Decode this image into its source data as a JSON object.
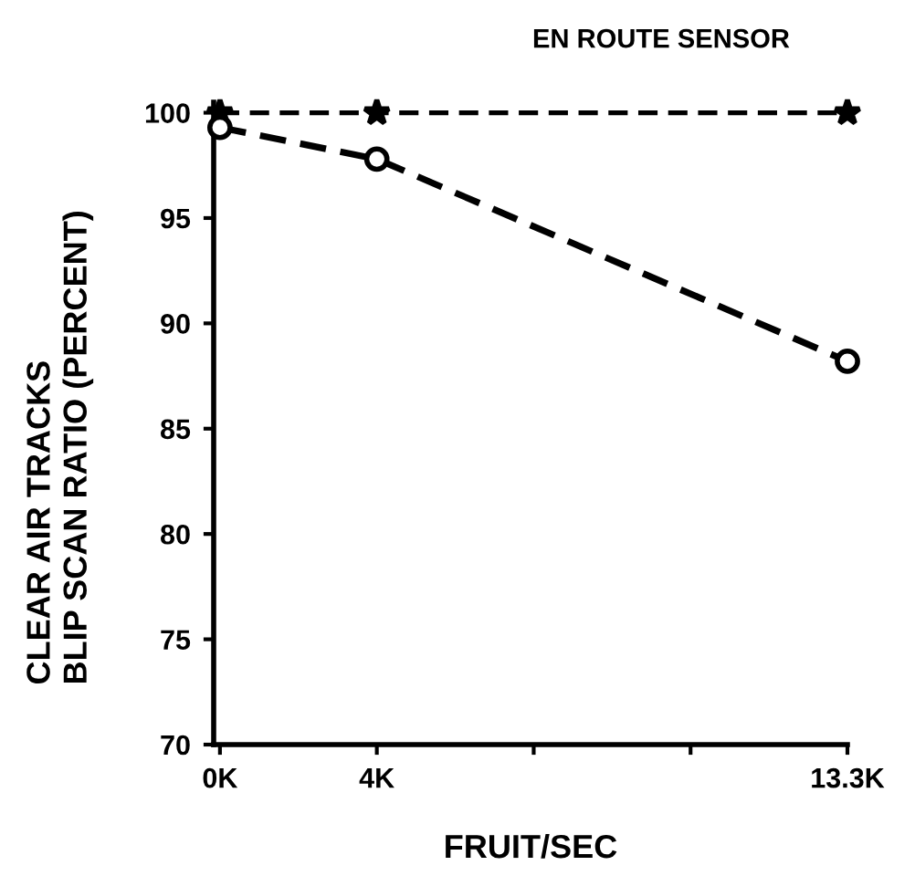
{
  "chart_data": {
    "type": "line",
    "title": "EN ROUTE SENSOR",
    "xlabel": "FRUIT/SEC",
    "ylabel": "CLEAR AIR TRACKS\nBLIP SCAN RATIO (PERCENT)",
    "categories": [
      "0K",
      "4K",
      null,
      null,
      "13.3K"
    ],
    "series": [
      {
        "color": "#000000",
        "values": [
          100,
          100,
          null,
          null,
          100
        ],
        "marker": "star"
      },
      {
        "color": "#000000",
        "values": [
          99.3,
          97.8,
          null,
          null,
          88.2
        ],
        "marker": "circle"
      }
    ],
    "ylim": [
      70,
      100.5
    ],
    "yticks": [
      70,
      75,
      80,
      85,
      90,
      95,
      100
    ],
    "line_style": "dashed"
  }
}
